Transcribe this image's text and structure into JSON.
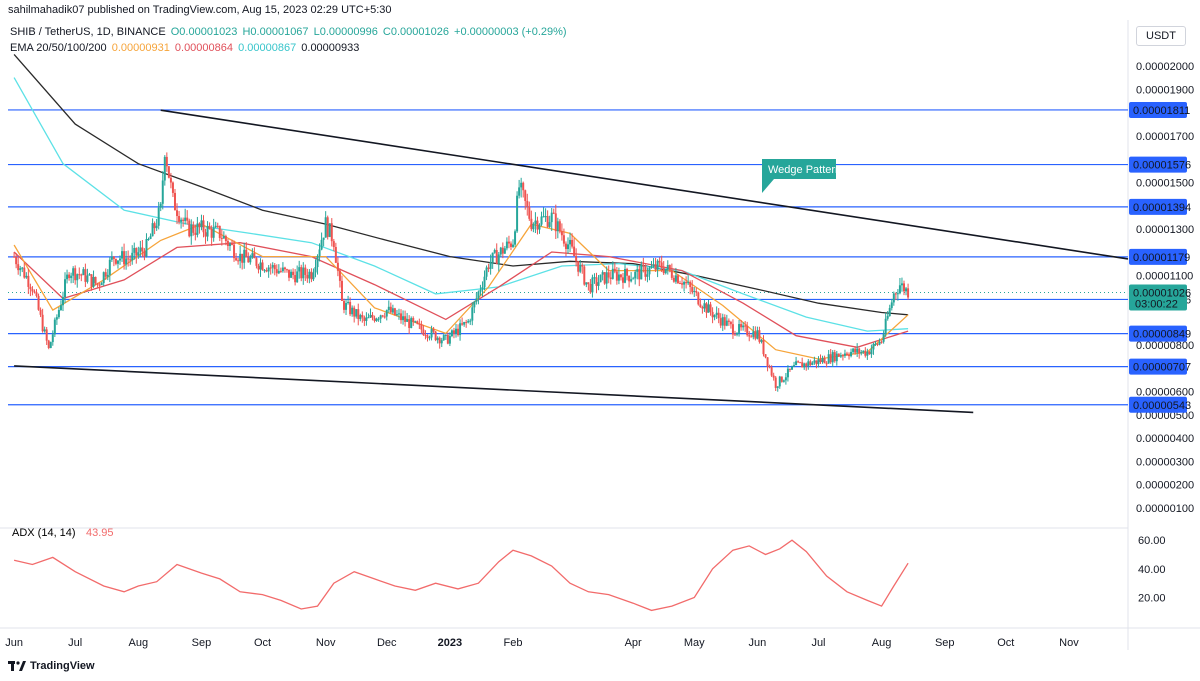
{
  "header": {
    "published": "sahilmahadik07 published on TradingView.com, Aug 15, 2023 02:29 UTC+5:30",
    "symbol_line": "SHIB / TetherUS, 1D, BINANCE",
    "ohlc": {
      "o": "O0.00001023",
      "h": "H0.00001067",
      "l": "L0.00000996",
      "c": "C0.00001026",
      "chg": "+0.00000003 (+0.29%)"
    },
    "ema_label": "EMA 20/50/100/200",
    "ema_values": [
      "0.00000931",
      "0.00000864",
      "0.00000867",
      "0.00000933"
    ],
    "currency_button": "USDT"
  },
  "footer": {
    "brand": "TradingView"
  },
  "colors": {
    "ema20": "#f6a43a",
    "ema50": "#e0505a",
    "ema100": "#5ce1e6",
    "ema200": "#2a2a2a",
    "up": "#26a69a",
    "down": "#ef5350",
    "level": "#2962ff",
    "adx": "#f26b6b",
    "annotation": "#26a69a"
  },
  "chart_data": [
    {
      "type": "candlestick",
      "title": "",
      "ylim": [
        0.0,
        2.1e-06
      ],
      "y_ticks": [
        "0.00002000",
        "0.00001900",
        "0.00001700",
        "0.00001500",
        "0.00001300",
        "0.00001100",
        "0.00000800",
        "0.00000600",
        "0.00000500",
        "0.00000400",
        "0.00000300",
        "0.00000200",
        "0.00000100"
      ],
      "x_ticks": [
        "Jun",
        "Jul",
        "Aug",
        "Sep",
        "Oct",
        "Nov",
        "Dec",
        "2023",
        "Feb",
        "Apr",
        "May",
        "Jun",
        "Jul",
        "Aug",
        "Sep",
        "Oct",
        "Nov"
      ],
      "levels": [
        1.811e-05,
        1.576e-05,
        1.394e-05,
        1.179e-05,
        9.96e-06,
        8.49e-06,
        7.07e-06,
        5.43e-06
      ],
      "level_labels": [
        "0.00001811",
        "0.00001576",
        "0.00001394",
        "0.00001179",
        "0.00000996",
        "0.00000849",
        "0.00000707",
        "0.00000543"
      ],
      "current_price": {
        "value": 1.026e-05,
        "label": "0.00001026",
        "countdown": "03:00:22"
      },
      "annotation": "Wedge Pattern",
      "trendlines": [
        {
          "from": [
            "2022-08-12",
            1.81e-05
          ],
          "to": [
            "2023-11-30",
            1.17e-05
          ]
        },
        {
          "from": [
            "2022-06-01",
            7.1e-06
          ],
          "to": [
            "2023-09-15",
            5.1e-06
          ]
        }
      ],
      "close_path": [
        [
          "2022-06-01",
          1.18e-05
        ],
        [
          "2022-06-10",
          1.05e-05
        ],
        [
          "2022-06-18",
          7.8e-06
        ],
        [
          "2022-06-22",
          9.2e-06
        ],
        [
          "2022-06-28",
          1.12e-05
        ],
        [
          "2022-07-05",
          1.1e-05
        ],
        [
          "2022-07-12",
          1.06e-05
        ],
        [
          "2022-07-20",
          1.18e-05
        ],
        [
          "2022-07-28",
          1.17e-05
        ],
        [
          "2022-08-05",
          1.22e-05
        ],
        [
          "2022-08-12",
          1.38e-05
        ],
        [
          "2022-08-14",
          1.65e-05
        ],
        [
          "2022-08-18",
          1.42e-05
        ],
        [
          "2022-08-25",
          1.3e-05
        ],
        [
          "2022-09-01",
          1.3e-05
        ],
        [
          "2022-09-10",
          1.28e-05
        ],
        [
          "2022-09-20",
          1.18e-05
        ],
        [
          "2022-10-01",
          1.15e-05
        ],
        [
          "2022-10-15",
          1.1e-05
        ],
        [
          "2022-10-25",
          1.11e-05
        ],
        [
          "2022-11-01",
          1.32e-05
        ],
        [
          "2022-11-05",
          1.25e-05
        ],
        [
          "2022-11-09",
          9.8e-06
        ],
        [
          "2022-11-20",
          9e-06
        ],
        [
          "2022-12-01",
          9.5e-06
        ],
        [
          "2022-12-15",
          8.8e-06
        ],
        [
          "2022-12-30",
          8.2e-06
        ],
        [
          "2023-01-10",
          9e-06
        ],
        [
          "2023-01-20",
          1.15e-05
        ],
        [
          "2023-02-01",
          1.25e-05
        ],
        [
          "2023-02-04",
          1.48e-05
        ],
        [
          "2023-02-10",
          1.33e-05
        ],
        [
          "2023-02-20",
          1.35e-05
        ],
        [
          "2023-03-01",
          1.22e-05
        ],
        [
          "2023-03-10",
          1.05e-05
        ],
        [
          "2023-03-20",
          1.1e-05
        ],
        [
          "2023-04-01",
          1.1e-05
        ],
        [
          "2023-04-15",
          1.14e-05
        ],
        [
          "2023-04-25",
          1.08e-05
        ],
        [
          "2023-05-08",
          9.5e-06
        ],
        [
          "2023-05-20",
          8.7e-06
        ],
        [
          "2023-06-01",
          8.5e-06
        ],
        [
          "2023-06-10",
          6.3e-06
        ],
        [
          "2023-06-20",
          7.1e-06
        ],
        [
          "2023-07-01",
          7.3e-06
        ],
        [
          "2023-07-15",
          7.7e-06
        ],
        [
          "2023-07-25",
          7.7e-06
        ],
        [
          "2023-08-01",
          8.2e-06
        ],
        [
          "2023-08-07",
          1.02e-05
        ],
        [
          "2023-08-10",
          1.06e-05
        ],
        [
          "2023-08-14",
          1.03e-05
        ]
      ],
      "ema20": [
        [
          "2022-06-01",
          1.23e-05
        ],
        [
          "2022-06-20",
          9.5e-06
        ],
        [
          "2022-07-15",
          1.08e-05
        ],
        [
          "2022-08-12",
          1.25e-05
        ],
        [
          "2022-09-01",
          1.32e-05
        ],
        [
          "2022-10-01",
          1.18e-05
        ],
        [
          "2022-11-01",
          1.18e-05
        ],
        [
          "2022-11-25",
          9.6e-06
        ],
        [
          "2022-12-30",
          8.5e-06
        ],
        [
          "2023-01-20",
          1.05e-05
        ],
        [
          "2023-02-10",
          1.32e-05
        ],
        [
          "2023-03-01",
          1.28e-05
        ],
        [
          "2023-03-20",
          1.12e-05
        ],
        [
          "2023-04-20",
          1.12e-05
        ],
        [
          "2023-05-15",
          9.7e-06
        ],
        [
          "2023-06-10",
          7.8e-06
        ],
        [
          "2023-07-01",
          7.4e-06
        ],
        [
          "2023-07-25",
          7.7e-06
        ],
        [
          "2023-08-14",
          9.3e-06
        ]
      ],
      "ema50": [
        [
          "2022-06-01",
          1.2e-05
        ],
        [
          "2022-06-25",
          1e-05
        ],
        [
          "2022-07-25",
          1.08e-05
        ],
        [
          "2022-08-20",
          1.22e-05
        ],
        [
          "2022-09-20",
          1.24e-05
        ],
        [
          "2022-10-25",
          1.18e-05
        ],
        [
          "2022-11-25",
          1.06e-05
        ],
        [
          "2022-12-30",
          9.1e-06
        ],
        [
          "2023-01-25",
          1.05e-05
        ],
        [
          "2023-02-20",
          1.2e-05
        ],
        [
          "2023-03-20",
          1.18e-05
        ],
        [
          "2023-04-25",
          1.12e-05
        ],
        [
          "2023-05-25",
          9.8e-06
        ],
        [
          "2023-06-20",
          8.4e-06
        ],
        [
          "2023-07-20",
          7.9e-06
        ],
        [
          "2023-08-14",
          8.6e-06
        ]
      ],
      "ema100": [
        [
          "2022-06-01",
          1.95e-05
        ],
        [
          "2022-06-25",
          1.58e-05
        ],
        [
          "2022-07-25",
          1.38e-05
        ],
        [
          "2022-08-25",
          1.32e-05
        ],
        [
          "2022-09-25",
          1.28e-05
        ],
        [
          "2022-10-25",
          1.24e-05
        ],
        [
          "2022-11-25",
          1.14e-05
        ],
        [
          "2022-12-25",
          1.02e-05
        ],
        [
          "2023-01-25",
          1.05e-05
        ],
        [
          "2023-02-25",
          1.14e-05
        ],
        [
          "2023-03-25",
          1.15e-05
        ],
        [
          "2023-04-25",
          1.12e-05
        ],
        [
          "2023-05-25",
          1.02e-05
        ],
        [
          "2023-06-25",
          9.2e-06
        ],
        [
          "2023-07-25",
          8.6e-06
        ],
        [
          "2023-08-14",
          8.7e-06
        ]
      ],
      "ema200": [
        [
          "2022-06-01",
          2.05e-05
        ],
        [
          "2022-07-01",
          1.75e-05
        ],
        [
          "2022-08-01",
          1.58e-05
        ],
        [
          "2022-09-01",
          1.48e-05
        ],
        [
          "2022-10-01",
          1.38e-05
        ],
        [
          "2022-11-01",
          1.32e-05
        ],
        [
          "2022-12-01",
          1.25e-05
        ],
        [
          "2023-01-01",
          1.18e-05
        ],
        [
          "2023-02-01",
          1.14e-05
        ],
        [
          "2023-03-01",
          1.16e-05
        ],
        [
          "2023-04-01",
          1.15e-05
        ],
        [
          "2023-05-01",
          1.1e-05
        ],
        [
          "2023-06-01",
          1.04e-05
        ],
        [
          "2023-07-01",
          9.8e-06
        ],
        [
          "2023-08-01",
          9.4e-06
        ],
        [
          "2023-08-14",
          9.3e-06
        ]
      ]
    },
    {
      "type": "line",
      "title": "ADX (14, 14)",
      "value_label": "43.95",
      "ylim": [
        5,
        65
      ],
      "y_ticks": [
        "60.00",
        "40.00",
        "20.00"
      ],
      "series": [
        {
          "values": [
            [
              "2022-06-01",
              46
            ],
            [
              "2022-06-10",
              43
            ],
            [
              "2022-06-20",
              48
            ],
            [
              "2022-07-01",
              38
            ],
            [
              "2022-07-15",
              28
            ],
            [
              "2022-07-25",
              24
            ],
            [
              "2022-08-01",
              28
            ],
            [
              "2022-08-10",
              31
            ],
            [
              "2022-08-20",
              43
            ],
            [
              "2022-09-01",
              37
            ],
            [
              "2022-09-10",
              33
            ],
            [
              "2022-09-20",
              24
            ],
            [
              "2022-10-01",
              22
            ],
            [
              "2022-10-10",
              18
            ],
            [
              "2022-10-20",
              12
            ],
            [
              "2022-10-28",
              14
            ],
            [
              "2022-11-05",
              30
            ],
            [
              "2022-11-15",
              38
            ],
            [
              "2022-11-25",
              33
            ],
            [
              "2022-12-05",
              28
            ],
            [
              "2022-12-15",
              25
            ],
            [
              "2022-12-25",
              30
            ],
            [
              "2023-01-05",
              26
            ],
            [
              "2023-01-15",
              30
            ],
            [
              "2023-01-25",
              45
            ],
            [
              "2023-02-01",
              53
            ],
            [
              "2023-02-10",
              49
            ],
            [
              "2023-02-20",
              42
            ],
            [
              "2023-03-01",
              30
            ],
            [
              "2023-03-10",
              24
            ],
            [
              "2023-03-20",
              22
            ],
            [
              "2023-04-01",
              16
            ],
            [
              "2023-04-10",
              11
            ],
            [
              "2023-04-20",
              14
            ],
            [
              "2023-05-01",
              20
            ],
            [
              "2023-05-10",
              40
            ],
            [
              "2023-05-20",
              53
            ],
            [
              "2023-05-28",
              56
            ],
            [
              "2023-06-05",
              50
            ],
            [
              "2023-06-12",
              54
            ],
            [
              "2023-06-18",
              60
            ],
            [
              "2023-06-25",
              52
            ],
            [
              "2023-07-05",
              35
            ],
            [
              "2023-07-15",
              24
            ],
            [
              "2023-07-25",
              18
            ],
            [
              "2023-08-01",
              14
            ],
            [
              "2023-08-07",
              28
            ],
            [
              "2023-08-14",
              43.95
            ]
          ]
        }
      ]
    }
  ]
}
